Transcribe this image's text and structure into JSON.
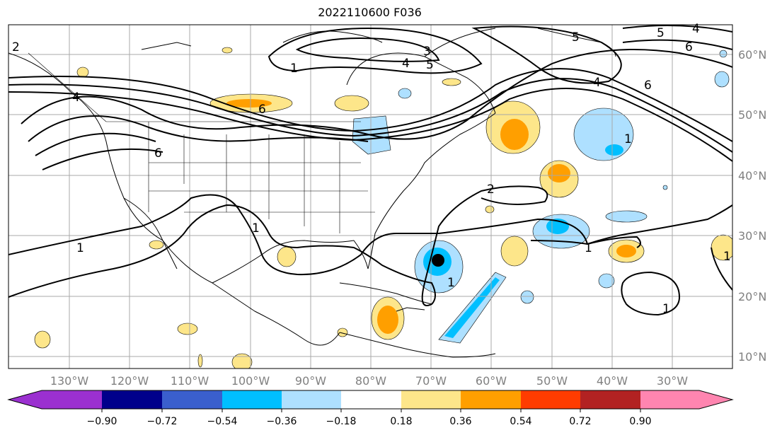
{
  "title": "2022110600 F036",
  "map": {
    "lat_labels": [
      "60°N",
      "50°N",
      "40°N",
      "30°N",
      "20°N",
      "10°N"
    ],
    "lon_labels": [
      "130°W",
      "120°W",
      "110°W",
      "100°W",
      "90°W",
      "80°W",
      "70°W",
      "60°W",
      "50°W",
      "40°W",
      "30°W"
    ],
    "contour_labels": [
      "2",
      "1",
      "4",
      "3",
      "5",
      "4",
      "5",
      "6",
      "5",
      "4",
      "6",
      "6",
      "4",
      "6",
      "1",
      "2",
      "1",
      "1",
      "1",
      "1",
      "1",
      "1"
    ],
    "storm_marker": "center-dot"
  },
  "colorbar": {
    "ticks": [
      "−0.90",
      "−0.72",
      "−0.54",
      "−0.36",
      "−0.18",
      "0.18",
      "0.36",
      "0.54",
      "0.72",
      "0.90"
    ],
    "colors": [
      "#9b30d0",
      "#00008b",
      "#3a5fcd",
      "#00bfff",
      "#aee0ff",
      "#ffffff",
      "#fde68a",
      "#ff9f00",
      "#ff3c00",
      "#b22222",
      "#ff85b0"
    ]
  }
}
